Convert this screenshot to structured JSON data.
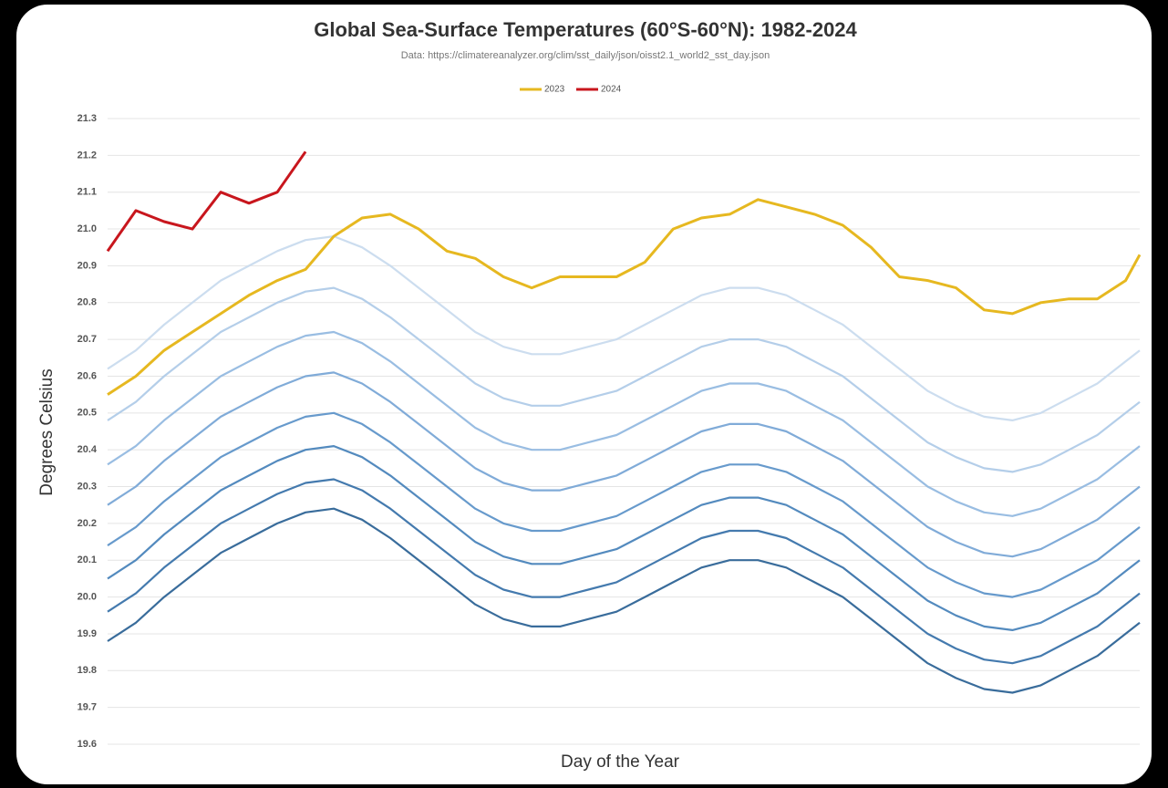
{
  "chart_data": {
    "type": "line",
    "title": "Global Sea-Surface Temperatures (60°S-60°N): 1982-2024",
    "subtitle": "Data: https://climatereanalyzer.org/clim/sst_daily/json/oisst2.1_world2_sst_day.json",
    "x_label": "Day of the Year",
    "y_label": "Degrees Celsius",
    "x": [
      1,
      11,
      21,
      31,
      41,
      51,
      61,
      71,
      81,
      91,
      101,
      111,
      121,
      131,
      141,
      151,
      161,
      171,
      181,
      191,
      201,
      211,
      221,
      231,
      241,
      251,
      261,
      271,
      281,
      291,
      301,
      311,
      321,
      331,
      341,
      351,
      361,
      366
    ],
    "xlim": [
      1,
      366
    ],
    "ylim": [
      19.6,
      21.3
    ],
    "yticks": [
      19.6,
      19.7,
      19.8,
      19.9,
      {
        "value": 20,
        "label": "20.0"
      },
      20.1,
      20.2,
      20.3,
      20.4,
      20.5,
      20.6,
      20.7,
      20.8,
      20.9,
      {
        "value": 21,
        "label": "21.0"
      },
      21.1,
      21.2,
      21.3
    ],
    "grid": true,
    "legend": "top",
    "series": [
      {
        "color": "#c9dbee",
        "values": [
          20.62,
          20.67,
          20.74,
          20.8,
          20.86,
          20.9,
          20.94,
          20.97,
          20.98,
          20.95,
          20.9,
          20.84,
          20.78,
          20.72,
          20.68,
          20.66,
          20.66,
          20.68,
          20.7,
          20.74,
          20.78,
          20.82,
          20.84,
          20.84,
          20.82,
          20.78,
          20.74,
          20.68,
          20.62,
          20.56,
          20.52,
          20.49,
          20.48,
          20.5,
          20.54,
          20.58,
          20.64,
          20.67
        ]
      },
      {
        "color": "#b0cbe8",
        "values": [
          20.48,
          20.53,
          20.6,
          20.66,
          20.72,
          20.76,
          20.8,
          20.83,
          20.84,
          20.81,
          20.76,
          20.7,
          20.64,
          20.58,
          20.54,
          20.52,
          20.52,
          20.54,
          20.56,
          20.6,
          20.64,
          20.68,
          20.7,
          20.7,
          20.68,
          20.64,
          20.6,
          20.54,
          20.48,
          20.42,
          20.38,
          20.35,
          20.34,
          20.36,
          20.4,
          20.44,
          20.5,
          20.53
        ]
      },
      {
        "color": "#94b9e0",
        "values": [
          20.36,
          20.41,
          20.48,
          20.54,
          20.6,
          20.64,
          20.68,
          20.71,
          20.72,
          20.69,
          20.64,
          20.58,
          20.52,
          20.46,
          20.42,
          20.4,
          20.4,
          20.42,
          20.44,
          20.48,
          20.52,
          20.56,
          20.58,
          20.58,
          20.56,
          20.52,
          20.48,
          20.42,
          20.36,
          20.3,
          20.26,
          20.23,
          20.22,
          20.24,
          20.28,
          20.32,
          20.38,
          20.41
        ]
      },
      {
        "color": "#79a7d6",
        "values": [
          20.25,
          20.3,
          20.37,
          20.43,
          20.49,
          20.53,
          20.57,
          20.6,
          20.61,
          20.58,
          20.53,
          20.47,
          20.41,
          20.35,
          20.31,
          20.29,
          20.29,
          20.31,
          20.33,
          20.37,
          20.41,
          20.45,
          20.47,
          20.47,
          20.45,
          20.41,
          20.37,
          20.31,
          20.25,
          20.19,
          20.15,
          20.12,
          20.11,
          20.13,
          20.17,
          20.21,
          20.27,
          20.3
        ]
      },
      {
        "color": "#5f95c9",
        "values": [
          20.14,
          20.19,
          20.26,
          20.32,
          20.38,
          20.42,
          20.46,
          20.49,
          20.5,
          20.47,
          20.42,
          20.36,
          20.3,
          20.24,
          20.2,
          20.18,
          20.18,
          20.2,
          20.22,
          20.26,
          20.3,
          20.34,
          20.36,
          20.36,
          20.34,
          20.3,
          20.26,
          20.2,
          20.14,
          20.08,
          20.04,
          20.01,
          20.0,
          20.02,
          20.06,
          20.1,
          20.16,
          20.19
        ]
      },
      {
        "color": "#4a84bb",
        "values": [
          20.05,
          20.1,
          20.17,
          20.23,
          20.29,
          20.33,
          20.37,
          20.4,
          20.41,
          20.38,
          20.33,
          20.27,
          20.21,
          20.15,
          20.11,
          20.09,
          20.09,
          20.11,
          20.13,
          20.17,
          20.21,
          20.25,
          20.27,
          20.27,
          20.25,
          20.21,
          20.17,
          20.11,
          20.05,
          19.99,
          19.95,
          19.92,
          19.91,
          19.93,
          19.97,
          20.01,
          20.07,
          20.1
        ]
      },
      {
        "color": "#3a73aa",
        "values": [
          19.96,
          20.01,
          20.08,
          20.14,
          20.2,
          20.24,
          20.28,
          20.31,
          20.32,
          20.29,
          20.24,
          20.18,
          20.12,
          20.06,
          20.02,
          20.0,
          20.0,
          20.02,
          20.04,
          20.08,
          20.12,
          20.16,
          20.18,
          20.18,
          20.16,
          20.12,
          20.08,
          20.02,
          19.96,
          19.9,
          19.86,
          19.83,
          19.82,
          19.84,
          19.88,
          19.92,
          19.98,
          20.01
        ]
      },
      {
        "color": "#2e6496",
        "values": [
          19.88,
          19.93,
          20.0,
          20.06,
          20.12,
          20.16,
          20.2,
          20.23,
          20.24,
          20.21,
          20.16,
          20.1,
          20.04,
          19.98,
          19.94,
          19.92,
          19.92,
          19.94,
          19.96,
          20.0,
          20.04,
          20.08,
          20.1,
          20.1,
          20.08,
          20.04,
          20.0,
          19.94,
          19.88,
          19.82,
          19.78,
          19.75,
          19.74,
          19.76,
          19.8,
          19.84,
          19.9,
          19.93
        ]
      },
      {
        "name": "2023",
        "color": "#e6b820",
        "values": [
          20.55,
          20.6,
          20.67,
          20.72,
          20.77,
          20.82,
          20.86,
          20.89,
          20.98,
          21.03,
          21.04,
          21.0,
          20.94,
          20.92,
          20.87,
          20.84,
          20.87,
          20.87,
          20.87,
          20.91,
          21.0,
          21.03,
          21.04,
          21.08,
          21.06,
          21.04,
          21.01,
          20.95,
          20.87,
          20.86,
          20.84,
          20.78,
          20.77,
          20.8,
          20.81,
          20.81,
          20.86,
          20.93
        ]
      },
      {
        "name": "2024",
        "color": "#c8161d",
        "values": [
          20.94,
          21.05,
          21.02,
          21.0,
          21.1,
          21.07,
          21.1,
          21.21,
          null,
          null,
          null,
          null,
          null,
          null,
          null,
          null,
          null,
          null,
          null,
          null,
          null,
          null,
          null,
          null,
          null,
          null,
          null,
          null,
          null,
          null,
          null,
          null,
          null,
          null,
          null,
          null,
          null,
          null
        ]
      }
    ]
  }
}
